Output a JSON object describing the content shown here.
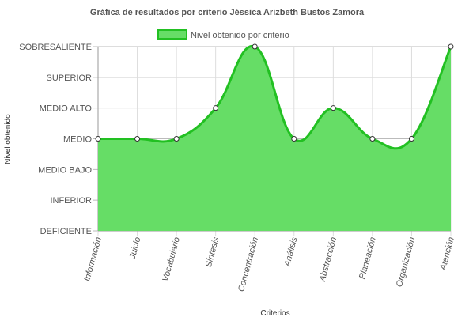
{
  "chart_data": {
    "type": "area",
    "title": "Gráfica de resultados por criterio Jéssica Arizbeth Bustos Zamora",
    "xlabel": "Criterios",
    "ylabel": "Nivel obtenido",
    "y_levels": [
      "DEFICIENTE",
      "INFERIOR",
      "MEDIO BAJO",
      "MEDIO",
      "MEDIO ALTO",
      "SUPERIOR",
      "SOBRESALIENTE"
    ],
    "ylim": [
      0,
      6
    ],
    "categories": [
      "Información",
      "Juicio",
      "Vocabulario",
      "Síntesis",
      "Concentración",
      "Análisis",
      "Abstracción",
      "Planeación",
      "Organización",
      "Atención"
    ],
    "series": [
      {
        "name": "Nivel obtenido por criterio",
        "values": [
          3,
          3,
          3,
          4,
          6,
          3,
          4,
          3,
          3,
          6
        ]
      }
    ],
    "colors": {
      "fill": "#66dd66",
      "line": "#22c022",
      "grid": "#bbbbbb",
      "point_fill": "#ffffff",
      "point_stroke": "#333333"
    },
    "legend": "top-center",
    "grid": true
  }
}
